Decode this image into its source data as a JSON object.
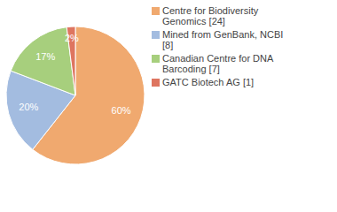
{
  "chart_data": {
    "type": "pie",
    "categories": [
      "Centre for Biodiversity Genomics [24]",
      "Mined from GenBank, NCBI [8]",
      "Canadian Centre for DNA Barcoding [7]",
      "GATC Biotech AG [1]"
    ],
    "values": [
      60,
      20,
      17,
      2
    ],
    "value_labels": [
      "60%",
      "20%",
      "17%",
      "2%"
    ],
    "colors": [
      "#f0a96f",
      "#a3bce0",
      "#a7cf7d",
      "#de7560"
    ],
    "data_labels": true,
    "legend": "right"
  }
}
